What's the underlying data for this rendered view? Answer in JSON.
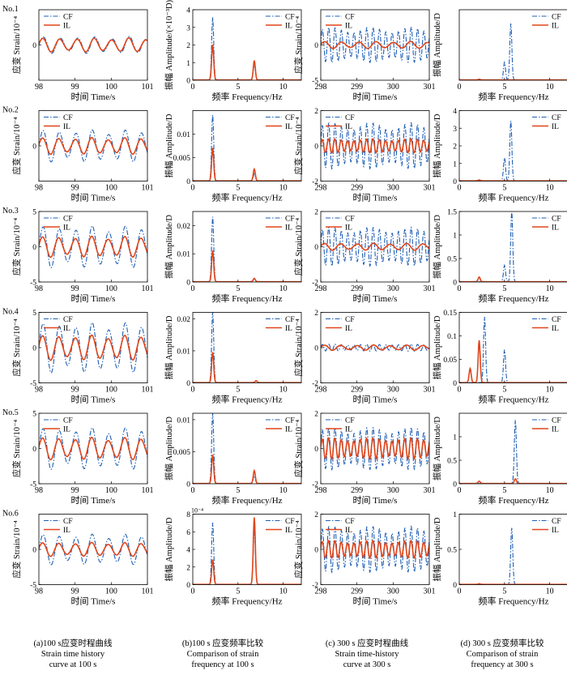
{
  "figure": {
    "row_labels": [
      "No.1",
      "No.2",
      "No.3",
      "No.4",
      "No.5",
      "No.6"
    ],
    "column_captions": [
      {
        "line1": "(a)100 s应变时程曲线",
        "line2": "Strain time history",
        "line3": "curve at 100 s"
      },
      {
        "line1": "(b)100 s 应变频率比较",
        "line2": "Comparison of strain",
        "line3": "frequency at 100 s"
      },
      {
        "line1": "(c) 300 s 应变时程曲线",
        "line2": "Strain time-history",
        "line3": "curve at 300 s"
      },
      {
        "line1": "(d) 300 s 应变频率比较",
        "line2": "Comparison of strain",
        "line3": "frequency at 300 s"
      }
    ]
  },
  "colors": {
    "CF": "#1f5fb4",
    "IL": "#e0451a"
  },
  "chart_data": [
    {
      "type": "line",
      "row": 1,
      "col": "a",
      "ylabel": "应变 Strain/10⁻⁴",
      "xlabel": "时间 Time/s",
      "xlim": [
        98,
        101
      ],
      "ylim": [
        -5,
        5
      ],
      "xticks": [
        98,
        99,
        100,
        101
      ],
      "yticks": [
        0
      ],
      "legend": "top-left",
      "series": [
        {
          "name": "CF",
          "style": "dashdot",
          "amplitude": 1.2,
          "freq_hz": 2.1,
          "offset": 0
        },
        {
          "name": "IL",
          "style": "solid",
          "amplitude": 1.0,
          "freq_hz": 2.1,
          "offset": 0
        }
      ]
    },
    {
      "type": "line",
      "row": 1,
      "col": "b",
      "ylabel": "振幅 Amplitude/(×10⁻³D)",
      "xlabel": "频率 Frequency/Hz",
      "xlim": [
        0,
        12
      ],
      "ylim": [
        0,
        4
      ],
      "xticks": [
        0,
        5,
        10
      ],
      "yticks": [
        0,
        1,
        2,
        3,
        4
      ],
      "legend": "top-right",
      "series": [
        {
          "name": "CF",
          "style": "dashdot",
          "peaks": [
            [
              2.2,
              3.55
            ],
            [
              6.8,
              0.9
            ]
          ]
        },
        {
          "name": "IL",
          "style": "solid",
          "peaks": [
            [
              2.2,
              2.0
            ],
            [
              6.8,
              1.1
            ]
          ]
        }
      ]
    },
    {
      "type": "line",
      "row": 1,
      "col": "c",
      "ylabel": "应变 Strain/10⁻⁴",
      "xlabel": "时间 Time/s",
      "xlim": [
        298,
        301
      ],
      "ylim": [
        -5,
        5
      ],
      "xticks": [
        298,
        299,
        300,
        301
      ],
      "yticks": [
        -5,
        0
      ],
      "legend": "top-left",
      "series": [
        {
          "name": "CF",
          "style": "dashdot",
          "amplitude": 2.5,
          "freq_hz": 5.7,
          "offset": 0
        },
        {
          "name": "IL",
          "style": "solid",
          "amplitude": 0.5,
          "freq_hz": 2.1,
          "offset": 0
        }
      ]
    },
    {
      "type": "line",
      "row": 1,
      "col": "d",
      "ylabel": "振幅 Amplitude/D",
      "xlabel": "频率 Frequency/Hz",
      "xlim": [
        0,
        12
      ],
      "ylim": [
        0,
        2
      ],
      "xticks": [
        0,
        5,
        10
      ],
      "yticks": [],
      "legend": "top-right",
      "series": [
        {
          "name": "CF",
          "style": "dashdot",
          "peaks": [
            [
              5.0,
              0.5
            ],
            [
              5.7,
              1.6
            ]
          ]
        },
        {
          "name": "IL",
          "style": "solid",
          "peaks": [
            [
              2.2,
              0.02
            ]
          ]
        }
      ]
    },
    {
      "type": "line",
      "row": 2,
      "col": "a",
      "ylabel": "应变 Strain/10⁻⁴",
      "xlabel": "时间 Time/s",
      "xlim": [
        98,
        101
      ],
      "ylim": [
        -5,
        5
      ],
      "xticks": [
        98,
        99,
        100,
        101
      ],
      "yticks": [
        0
      ],
      "legend": "top-left",
      "series": [
        {
          "name": "CF",
          "style": "dashdot",
          "amplitude": 2.3,
          "freq_hz": 2.2,
          "offset": 0
        },
        {
          "name": "IL",
          "style": "solid",
          "amplitude": 1.2,
          "freq_hz": 2.2,
          "offset": 0
        }
      ]
    },
    {
      "type": "line",
      "row": 2,
      "col": "b",
      "ylabel": "振幅 Amplitude/D",
      "xlabel": "频率 Frequency/Hz",
      "xlim": [
        0,
        12
      ],
      "ylim": [
        0,
        0.015
      ],
      "xticks": [
        0,
        5,
        10
      ],
      "yticks": [
        0,
        0.005,
        0.01
      ],
      "legend": "top-right",
      "series": [
        {
          "name": "CF",
          "style": "dashdot",
          "peaks": [
            [
              2.2,
              0.014
            ],
            [
              6.8,
              0.0015
            ]
          ]
        },
        {
          "name": "IL",
          "style": "solid",
          "peaks": [
            [
              2.2,
              0.007
            ],
            [
              6.8,
              0.0025
            ]
          ]
        }
      ]
    },
    {
      "type": "line",
      "row": 2,
      "col": "c",
      "ylabel": "应变 Strain/10⁻⁴",
      "xlabel": "时间 Time/s",
      "xlim": [
        298,
        301
      ],
      "ylim": [
        -2,
        2
      ],
      "xticks": [
        298,
        299,
        300,
        301
      ],
      "yticks": [
        -2,
        0,
        2
      ],
      "legend": "top-left",
      "series": [
        {
          "name": "CF",
          "style": "dashdot",
          "amplitude": 1.3,
          "freq_hz": 5.7,
          "offset": 0
        },
        {
          "name": "IL",
          "style": "solid",
          "amplitude": 0.4,
          "freq_hz": 5.7,
          "offset": 0
        }
      ]
    },
    {
      "type": "line",
      "row": 2,
      "col": "d",
      "ylabel": "振幅 Amplitude/D",
      "xlabel": "频率 Frequency/Hz",
      "xlim": [
        0,
        12
      ],
      "ylim": [
        0,
        4
      ],
      "xticks": [
        0,
        5,
        10
      ],
      "yticks": [
        0,
        1,
        2,
        3,
        4
      ],
      "legend": "top-right",
      "series": [
        {
          "name": "CF",
          "style": "dashdot",
          "peaks": [
            [
              5.0,
              1.3
            ],
            [
              5.7,
              3.4
            ]
          ]
        },
        {
          "name": "IL",
          "style": "solid",
          "peaks": [
            [
              2.2,
              0.05
            ]
          ]
        }
      ]
    },
    {
      "type": "line",
      "row": 3,
      "col": "a",
      "ylabel": "应变 Strain/10⁻⁴",
      "xlabel": "时间 Time/s",
      "xlim": [
        98,
        101
      ],
      "ylim": [
        -5,
        5
      ],
      "xticks": [
        98,
        99,
        100,
        101
      ],
      "yticks": [
        -5,
        0,
        5
      ],
      "legend": "top-left",
      "series": [
        {
          "name": "CF",
          "style": "dashdot",
          "amplitude": 3.0,
          "freq_hz": 2.2,
          "offset": 0
        },
        {
          "name": "IL",
          "style": "solid",
          "amplitude": 1.5,
          "freq_hz": 2.2,
          "offset": 0
        }
      ]
    },
    {
      "type": "line",
      "row": 3,
      "col": "b",
      "ylabel": "振幅 Amplitude/D",
      "xlabel": "频率 Frequency/Hz",
      "xlim": [
        0,
        12
      ],
      "ylim": [
        0,
        0.025
      ],
      "xticks": [
        0,
        5,
        10
      ],
      "yticks": [
        0,
        0.01,
        0.02
      ],
      "legend": "top-right",
      "series": [
        {
          "name": "CF",
          "style": "dashdot",
          "peaks": [
            [
              2.2,
              0.023
            ],
            [
              6.8,
              0.0008
            ]
          ]
        },
        {
          "name": "IL",
          "style": "solid",
          "peaks": [
            [
              2.2,
              0.011
            ],
            [
              6.8,
              0.0012
            ]
          ]
        }
      ]
    },
    {
      "type": "line",
      "row": 3,
      "col": "c",
      "ylabel": "应变 Strain/10⁻⁴",
      "xlabel": "时间 Time/s",
      "xlim": [
        298,
        301
      ],
      "ylim": [
        -2,
        2
      ],
      "xticks": [
        298,
        299,
        300,
        301
      ],
      "yticks": [
        -2,
        0,
        2
      ],
      "legend": "top-left",
      "series": [
        {
          "name": "CF",
          "style": "dashdot",
          "amplitude": 1.1,
          "freq_hz": 5.7,
          "offset": 0
        },
        {
          "name": "IL",
          "style": "solid",
          "amplitude": 0.2,
          "freq_hz": 2.2,
          "offset": 0
        }
      ]
    },
    {
      "type": "line",
      "row": 3,
      "col": "d",
      "ylabel": "振幅 Amplitude/D",
      "xlabel": "频率 Frequency/Hz",
      "xlim": [
        0,
        12
      ],
      "ylim": [
        0,
        1.5
      ],
      "xticks": [
        0,
        5,
        10
      ],
      "yticks": [
        0,
        0.5,
        1,
        1.5
      ],
      "legend": "top-right",
      "series": [
        {
          "name": "CF",
          "style": "dashdot",
          "peaks": [
            [
              5.0,
              0.35
            ],
            [
              5.8,
              1.5
            ]
          ]
        },
        {
          "name": "IL",
          "style": "solid",
          "peaks": [
            [
              2.2,
              0.1
            ]
          ]
        }
      ]
    },
    {
      "type": "line",
      "row": 4,
      "col": "a",
      "ylabel": "应变 Strain/10⁻⁴",
      "xlabel": "时间 Time/s",
      "xlim": [
        98,
        101
      ],
      "ylim": [
        -5,
        5
      ],
      "xticks": [
        98,
        99,
        100,
        101
      ],
      "yticks": [
        -5,
        0,
        5
      ],
      "legend": "top-left",
      "series": [
        {
          "name": "CF",
          "style": "dashdot",
          "amplitude": 3.6,
          "freq_hz": 2.2,
          "offset": 0
        },
        {
          "name": "IL",
          "style": "solid",
          "amplitude": 1.8,
          "freq_hz": 2.2,
          "offset": 0
        }
      ]
    },
    {
      "type": "line",
      "row": 4,
      "col": "b",
      "ylabel": "振幅 Amplitude/D",
      "xlabel": "频率 Frequency/Hz",
      "xlim": [
        0,
        12
      ],
      "ylim": [
        0,
        0.022
      ],
      "xticks": [
        0,
        5,
        10
      ],
      "yticks": [
        0,
        0.01,
        0.02
      ],
      "legend": "top-right",
      "series": [
        {
          "name": "CF",
          "style": "dashdot",
          "peaks": [
            [
              2.2,
              0.022
            ],
            [
              7.0,
              0.0005
            ]
          ]
        },
        {
          "name": "IL",
          "style": "solid",
          "peaks": [
            [
              2.2,
              0.0095
            ],
            [
              7.0,
              0.0006
            ]
          ]
        }
      ]
    },
    {
      "type": "line",
      "row": 4,
      "col": "c",
      "ylabel": "应变 Strain/10⁻⁴",
      "xlabel": "时间 Time/s",
      "xlim": [
        298,
        301
      ],
      "ylim": [
        -2,
        2
      ],
      "xticks": [
        298,
        299,
        300,
        301
      ],
      "yticks": [
        -2,
        0,
        2
      ],
      "legend": "top-left",
      "series": [
        {
          "name": "CF",
          "style": "dashdot",
          "amplitude": 0.2,
          "freq_hz": 5.7,
          "offset": 0
        },
        {
          "name": "IL",
          "style": "solid",
          "amplitude": 0.15,
          "freq_hz": 2.2,
          "offset": 0
        }
      ]
    },
    {
      "type": "line",
      "row": 4,
      "col": "d",
      "ylabel": "振幅 Amplitude/D",
      "xlabel": "频率 Frequency/Hz",
      "xlim": [
        0,
        12
      ],
      "ylim": [
        0,
        0.15
      ],
      "xticks": [
        0,
        5,
        10
      ],
      "yticks": [
        0,
        0.05,
        0.1,
        0.15
      ],
      "legend": "top-right",
      "series": [
        {
          "name": "CF",
          "style": "dashdot",
          "peaks": [
            [
              2.8,
              0.14
            ],
            [
              5.0,
              0.07
            ]
          ]
        },
        {
          "name": "IL",
          "style": "solid",
          "peaks": [
            [
              2.2,
              0.09
            ],
            [
              1.2,
              0.03
            ]
          ]
        }
      ]
    },
    {
      "type": "line",
      "row": 5,
      "col": "a",
      "ylabel": "应变 Strain/10⁻⁴",
      "xlabel": "时间 Time/s",
      "xlim": [
        98,
        101
      ],
      "ylim": [
        -5,
        5
      ],
      "xticks": [
        98,
        99,
        100,
        101
      ],
      "yticks": [
        -5,
        0,
        5
      ],
      "legend": "top-left",
      "series": [
        {
          "name": "CF",
          "style": "dashdot",
          "amplitude": 3.0,
          "freq_hz": 2.2,
          "offset": 0
        },
        {
          "name": "IL",
          "style": "solid",
          "amplitude": 1.6,
          "freq_hz": 2.2,
          "offset": 0
        }
      ]
    },
    {
      "type": "line",
      "row": 5,
      "col": "b",
      "ylabel": "振幅 Amplitude/D",
      "xlabel": "频率 Frequency/Hz",
      "xlim": [
        0,
        12
      ],
      "ylim": [
        0,
        0.011
      ],
      "xticks": [
        0,
        5,
        10
      ],
      "yticks": [
        0,
        0.005,
        0.01
      ],
      "legend": "top-right",
      "series": [
        {
          "name": "CF",
          "style": "dashdot",
          "peaks": [
            [
              2.2,
              0.011
            ],
            [
              6.8,
              0.0012
            ]
          ]
        },
        {
          "name": "IL",
          "style": "solid",
          "peaks": [
            [
              2.2,
              0.0045
            ],
            [
              6.8,
              0.002
            ]
          ]
        }
      ]
    },
    {
      "type": "line",
      "row": 5,
      "col": "c",
      "ylabel": "应变 Strain/10⁻⁴",
      "xlabel": "时间 Time/s",
      "xlim": [
        298,
        301
      ],
      "ylim": [
        -2,
        2
      ],
      "xticks": [
        298,
        299,
        300,
        301
      ],
      "yticks": [
        -2,
        0,
        2
      ],
      "legend": "top-left",
      "series": [
        {
          "name": "CF",
          "style": "dashdot",
          "amplitude": 1.2,
          "freq_hz": 5.7,
          "offset": 0
        },
        {
          "name": "IL",
          "style": "solid",
          "amplitude": 0.6,
          "freq_hz": 5.7,
          "offset": 0
        }
      ]
    },
    {
      "type": "line",
      "row": 5,
      "col": "d",
      "ylabel": "振幅 Amplitude/D",
      "xlabel": "频率 Frequency/Hz",
      "xlim": [
        0,
        12
      ],
      "ylim": [
        0,
        1.5
      ],
      "xticks": [
        0,
        5,
        10
      ],
      "yticks": [
        0,
        0.5,
        1
      ],
      "legend": "top-right",
      "series": [
        {
          "name": "CF",
          "style": "dashdot",
          "peaks": [
            [
              6.2,
              1.35
            ]
          ]
        },
        {
          "name": "IL",
          "style": "solid",
          "peaks": [
            [
              2.2,
              0.05
            ],
            [
              6.2,
              0.1
            ]
          ]
        }
      ]
    },
    {
      "type": "line",
      "row": 6,
      "col": "a",
      "ylabel": "应变 Strain/10⁻⁴",
      "xlabel": "时间 Time/s",
      "xlim": [
        98,
        101
      ],
      "ylim": [
        -5,
        5
      ],
      "xticks": [
        98,
        99,
        100,
        101
      ],
      "yticks": [
        -5,
        0
      ],
      "legend": "top-left",
      "series": [
        {
          "name": "CF",
          "style": "dashdot",
          "amplitude": 2.2,
          "freq_hz": 2.2,
          "offset": 0
        },
        {
          "name": "IL",
          "style": "solid",
          "amplitude": 1.0,
          "freq_hz": 2.2,
          "offset": 0
        }
      ]
    },
    {
      "type": "line",
      "row": 6,
      "col": "b",
      "ylabel": "振幅 Amplitude/D",
      "xlabel": "频率 Frequency/Hz",
      "xlim": [
        0,
        12
      ],
      "ylim": [
        0,
        8
      ],
      "xticks": [
        0,
        5,
        10
      ],
      "yticks": [
        0,
        2,
        4,
        6,
        8
      ],
      "ytick_exponent": "10⁻⁴",
      "legend": "top-right",
      "series": [
        {
          "name": "CF",
          "style": "dashdot",
          "peaks": [
            [
              2.2,
              7.0
            ],
            [
              6.8,
              6.3
            ]
          ]
        },
        {
          "name": "IL",
          "style": "solid",
          "peaks": [
            [
              2.2,
              2.8
            ],
            [
              6.8,
              7.6
            ]
          ]
        }
      ]
    },
    {
      "type": "line",
      "row": 6,
      "col": "c",
      "ylabel": "应变 Strain/10⁻⁴",
      "xlabel": "时间 Time/s",
      "xlim": [
        298,
        301
      ],
      "ylim": [
        -2,
        2
      ],
      "xticks": [
        298,
        299,
        300,
        301
      ],
      "yticks": [
        -2,
        0,
        2
      ],
      "legend": "top-left",
      "series": [
        {
          "name": "CF",
          "style": "dashdot",
          "amplitude": 1.3,
          "freq_hz": 5.7,
          "offset": 0
        },
        {
          "name": "IL",
          "style": "solid",
          "amplitude": 0.5,
          "freq_hz": 5.7,
          "offset": 0
        }
      ]
    },
    {
      "type": "line",
      "row": 6,
      "col": "d",
      "ylabel": "振幅 Amplitude/D",
      "xlabel": "频率 Frequency/Hz",
      "xlim": [
        0,
        12
      ],
      "ylim": [
        0,
        1
      ],
      "xticks": [
        0,
        5,
        10
      ],
      "yticks": [
        0,
        0.5,
        1
      ],
      "legend": "top-right",
      "series": [
        {
          "name": "CF",
          "style": "dashdot",
          "peaks": [
            [
              5.8,
              0.8
            ]
          ]
        },
        {
          "name": "IL",
          "style": "solid",
          "peaks": [
            [
              2.2,
              0.01
            ]
          ]
        }
      ]
    }
  ]
}
